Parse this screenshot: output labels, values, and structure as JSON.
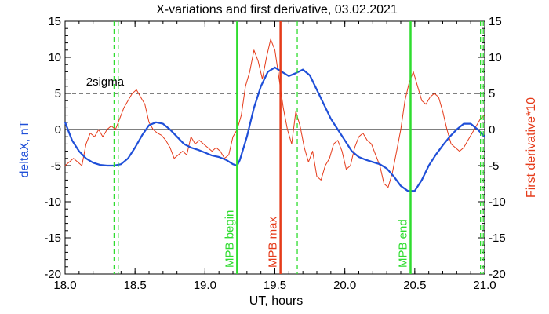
{
  "chart_data": {
    "type": "line",
    "title": "X-variations and first derivative, 03.02.2021",
    "xlabel": "UT, hours",
    "ylabel_left": "deltaX, nT",
    "ylabel_right": "First derivative*10",
    "xlim": [
      18.0,
      21.0
    ],
    "ylim": [
      -20,
      15
    ],
    "ylim_right": [
      -20,
      15
    ],
    "x_ticks": [
      "18.0",
      "18.5",
      "19.0",
      "19.5",
      "20.0",
      "20.5",
      "21.0"
    ],
    "y_ticks": [
      "15",
      "10",
      "5",
      "0",
      "-5",
      "-10",
      "-15",
      "-20"
    ],
    "colors": {
      "deltaX": "#1f4fd8",
      "derivative": "#e53b1a",
      "mpb": "#2fdc2f",
      "mpb_max": "#e53b1a"
    },
    "sigma_label": "2sigma",
    "sigma_level": 5,
    "zero_level": 0,
    "series": [
      {
        "name": "deltaX",
        "axis": "left",
        "x": [
          18.0,
          18.05,
          18.1,
          18.15,
          18.2,
          18.25,
          18.3,
          18.35,
          18.4,
          18.45,
          18.5,
          18.55,
          18.6,
          18.65,
          18.7,
          18.75,
          18.8,
          18.85,
          18.9,
          18.95,
          19.0,
          19.05,
          19.1,
          19.15,
          19.2,
          19.23,
          19.25,
          19.3,
          19.35,
          19.4,
          19.45,
          19.5,
          19.55,
          19.6,
          19.65,
          19.7,
          19.75,
          19.8,
          19.85,
          19.9,
          19.95,
          20.0,
          20.05,
          20.1,
          20.15,
          20.2,
          20.25,
          20.3,
          20.35,
          20.4,
          20.45,
          20.5,
          20.55,
          20.6,
          20.65,
          20.7,
          20.75,
          20.8,
          20.85,
          20.9,
          20.95,
          21.0
        ],
        "y": [
          1.0,
          -1.5,
          -3.0,
          -4.0,
          -4.6,
          -4.9,
          -5.0,
          -5.0,
          -4.8,
          -4.0,
          -2.5,
          -0.8,
          0.6,
          1.0,
          0.8,
          0.0,
          -1.0,
          -2.0,
          -2.5,
          -2.8,
          -3.2,
          -3.6,
          -3.8,
          -4.2,
          -4.8,
          -5.0,
          -4.2,
          -1.0,
          3.0,
          6.0,
          8.0,
          8.6,
          8.0,
          7.4,
          7.8,
          8.3,
          7.5,
          5.5,
          3.5,
          1.5,
          0.0,
          -1.5,
          -3.0,
          -3.8,
          -4.2,
          -4.5,
          -4.8,
          -5.4,
          -6.5,
          -7.8,
          -8.5,
          -8.5,
          -7.0,
          -5.0,
          -3.5,
          -2.2,
          -1.0,
          0.0,
          0.8,
          0.8,
          0.0,
          -1.0
        ]
      },
      {
        "name": "First derivative*10",
        "axis": "right",
        "x": [
          18.0,
          18.03,
          18.06,
          18.09,
          18.12,
          18.15,
          18.18,
          18.21,
          18.24,
          18.27,
          18.3,
          18.33,
          18.36,
          18.39,
          18.42,
          18.45,
          18.48,
          18.51,
          18.54,
          18.57,
          18.6,
          18.63,
          18.66,
          18.69,
          18.72,
          18.75,
          18.78,
          18.81,
          18.84,
          18.87,
          18.9,
          18.93,
          18.96,
          18.99,
          19.02,
          19.05,
          19.08,
          19.11,
          19.14,
          19.17,
          19.2,
          19.23,
          19.26,
          19.29,
          19.32,
          19.35,
          19.38,
          19.41,
          19.44,
          19.47,
          19.5,
          19.53,
          19.56,
          19.59,
          19.62,
          19.65,
          19.68,
          19.71,
          19.74,
          19.77,
          19.8,
          19.83,
          19.86,
          19.89,
          19.92,
          19.95,
          19.98,
          20.01,
          20.04,
          20.07,
          20.1,
          20.13,
          20.16,
          20.19,
          20.22,
          20.25,
          20.28,
          20.31,
          20.34,
          20.37,
          20.4,
          20.43,
          20.46,
          20.49,
          20.52,
          20.55,
          20.58,
          20.61,
          20.64,
          20.67,
          20.7,
          20.73,
          20.76,
          20.79,
          20.82,
          20.85,
          20.88,
          20.91,
          20.94,
          20.97,
          21.0
        ],
        "y": [
          -5.0,
          -4.5,
          -4.0,
          -4.5,
          -5.0,
          -2.0,
          -0.5,
          -1.0,
          0.0,
          -1.0,
          0.0,
          0.5,
          0.0,
          1.5,
          3.0,
          4.0,
          5.0,
          5.5,
          4.5,
          3.5,
          1.0,
          0.0,
          -0.5,
          -0.8,
          -1.5,
          -2.5,
          -4.0,
          -3.5,
          -3.0,
          -3.5,
          -1.0,
          -2.0,
          -1.5,
          -2.0,
          -2.5,
          -3.0,
          -2.5,
          -3.0,
          -4.0,
          -3.5,
          -1.0,
          0.0,
          2.0,
          6.0,
          8.0,
          11.0,
          9.5,
          7.0,
          10.0,
          12.5,
          11.0,
          7.0,
          3.0,
          0.0,
          -2.0,
          2.5,
          0.5,
          -2.5,
          -4.5,
          -3.0,
          -6.5,
          -7.0,
          -5.0,
          -4.0,
          -2.0,
          -1.5,
          -3.0,
          -5.5,
          -5.0,
          -2.5,
          -1.0,
          -0.5,
          -1.5,
          -2.0,
          -3.5,
          -5.0,
          -7.5,
          -8.0,
          -6.0,
          -3.0,
          0.0,
          4.0,
          6.5,
          8.0,
          6.0,
          4.0,
          3.5,
          4.5,
          5.0,
          4.5,
          2.5,
          0.0,
          -2.0,
          -2.5,
          -3.0,
          -2.5,
          -1.5,
          -0.5,
          0.5,
          1.5,
          2.0
        ]
      }
    ],
    "vlines": [
      {
        "x": 18.35,
        "style": "dashed",
        "color": "#2fdc2f"
      },
      {
        "x": 18.38,
        "style": "dashed",
        "color": "#2fdc2f"
      },
      {
        "x": 19.23,
        "style": "solid",
        "color": "#2fdc2f",
        "label": "MPB begin"
      },
      {
        "x": 19.54,
        "style": "solid",
        "color": "#e53b1a",
        "label": "MPB max"
      },
      {
        "x": 19.66,
        "style": "dashed",
        "color": "#2fdc2f"
      },
      {
        "x": 20.47,
        "style": "solid",
        "color": "#2fdc2f",
        "label": "MPB end"
      },
      {
        "x": 20.97,
        "style": "dashed",
        "color": "#2fdc2f"
      },
      {
        "x": 20.99,
        "style": "dashed",
        "color": "#2fdc2f"
      }
    ]
  }
}
